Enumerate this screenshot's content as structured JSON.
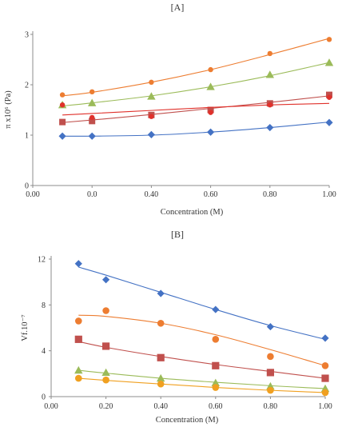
{
  "chart_data": [
    {
      "type": "scatter",
      "title": "[A]",
      "xlabel": "Concentration (M)",
      "ylabel": "π x10⁶ (Pa)",
      "xlim": [
        0,
        1
      ],
      "ylim": [
        0,
        3
      ],
      "x_ticks": [
        "0.00",
        "0.0",
        "0.40",
        "0.60",
        "0.80",
        "1.00"
      ],
      "y_ticks": [
        "0",
        "1",
        "2",
        "3"
      ],
      "grid": false,
      "series": [
        {
          "color": "#ED7D31",
          "marker": "circle",
          "x": [
            0.1,
            0.2,
            0.4,
            0.6,
            0.8,
            1.0
          ],
          "y": [
            1.8,
            1.86,
            2.05,
            2.3,
            2.62,
            2.9
          ],
          "fit": [
            1.78,
            1.85,
            2.05,
            2.3,
            2.6,
            2.92
          ]
        },
        {
          "color": "#9BBB59",
          "marker": "triangle",
          "x": [
            0.1,
            0.2,
            0.4,
            0.6,
            0.8,
            1.0
          ],
          "y": [
            1.6,
            1.64,
            1.77,
            1.96,
            2.2,
            2.44
          ],
          "fit": [
            1.58,
            1.64,
            1.78,
            1.96,
            2.18,
            2.44
          ]
        },
        {
          "color": "#C0504D",
          "marker": "square",
          "x": [
            0.1,
            0.2,
            0.4,
            0.6,
            0.8,
            1.0
          ],
          "y": [
            1.26,
            1.28,
            1.4,
            1.5,
            1.63,
            1.8
          ],
          "fit": [
            1.25,
            1.3,
            1.41,
            1.53,
            1.65,
            1.78
          ]
        },
        {
          "color": "#E0312B",
          "marker": "circle",
          "x": [
            0.1,
            0.2,
            0.4,
            0.6,
            0.8,
            1.0
          ],
          "y": [
            1.6,
            1.35,
            1.37,
            1.45,
            1.6,
            1.75
          ],
          "fit": [
            1.4,
            1.43,
            1.49,
            1.55,
            1.6,
            1.63
          ]
        },
        {
          "color": "#4472C4",
          "marker": "diamond",
          "x": [
            0.1,
            0.2,
            0.4,
            0.6,
            0.8,
            1.0
          ],
          "y": [
            0.98,
            0.98,
            1.01,
            1.06,
            1.15,
            1.25
          ],
          "fit": [
            0.98,
            0.98,
            1.0,
            1.06,
            1.15,
            1.26
          ]
        }
      ]
    },
    {
      "type": "scatter",
      "title": "[B]",
      "xlabel": "Concentration (M)",
      "ylabel": "Vf.10⁻⁷",
      "xlim": [
        0,
        1
      ],
      "ylim": [
        0,
        12
      ],
      "x_ticks": [
        "0.00",
        "0.20",
        "0.40",
        "0.60",
        "0.80",
        "1.00"
      ],
      "y_ticks": [
        "0",
        "4",
        "8",
        "12"
      ],
      "grid": false,
      "series": [
        {
          "color": "#4472C4",
          "marker": "diamond",
          "x": [
            0.1,
            0.2,
            0.4,
            0.6,
            0.8,
            1.0
          ],
          "y": [
            11.6,
            10.2,
            9.0,
            7.6,
            6.1,
            5.1
          ],
          "fit": [
            11.3,
            10.6,
            9.1,
            7.6,
            6.2,
            5.0
          ]
        },
        {
          "color": "#ED7D31",
          "marker": "circle",
          "x": [
            0.1,
            0.2,
            0.4,
            0.6,
            0.8,
            1.0
          ],
          "y": [
            6.6,
            7.5,
            6.4,
            5.0,
            3.5,
            2.7
          ],
          "fit": [
            7.1,
            7.0,
            6.4,
            5.4,
            4.1,
            2.7
          ]
        },
        {
          "color": "#C0504D",
          "marker": "square",
          "x": [
            0.1,
            0.2,
            0.4,
            0.6,
            0.8,
            1.0
          ],
          "y": [
            5.0,
            4.4,
            3.4,
            2.7,
            2.1,
            1.6
          ],
          "fit": [
            4.8,
            4.3,
            3.5,
            2.8,
            2.2,
            1.6
          ]
        },
        {
          "color": "#9BBB59",
          "marker": "triangle",
          "x": [
            0.1,
            0.2,
            0.4,
            0.6,
            0.8,
            1.0
          ],
          "y": [
            2.3,
            2.1,
            1.6,
            1.2,
            0.9,
            0.7
          ],
          "fit": [
            2.3,
            2.05,
            1.6,
            1.25,
            0.95,
            0.7
          ]
        },
        {
          "color": "#F0A020",
          "marker": "circle",
          "x": [
            0.1,
            0.2,
            0.4,
            0.6,
            0.8,
            1.0
          ],
          "y": [
            1.6,
            1.45,
            1.1,
            0.8,
            0.55,
            0.35
          ],
          "fit": [
            1.6,
            1.42,
            1.1,
            0.8,
            0.55,
            0.35
          ]
        }
      ]
    }
  ]
}
